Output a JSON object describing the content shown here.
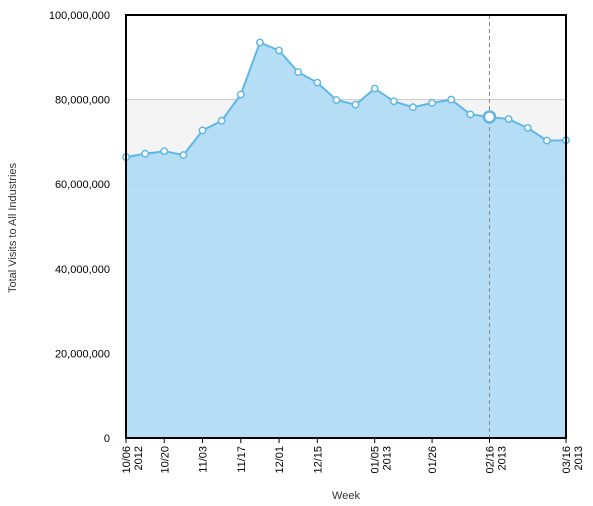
{
  "chart_data": {
    "type": "area",
    "title": "",
    "xlabel": "Week",
    "ylabel": "Total Visits to All Industries",
    "ylim": [
      0,
      100000000
    ],
    "y_ticks": [
      0,
      20000000,
      40000000,
      60000000,
      80000000,
      100000000
    ],
    "y_tick_labels": [
      "0",
      "20,000,000",
      "40,000,000",
      "60,000,000",
      "80,000,000",
      "100,000,000"
    ],
    "x_tick_labels": [
      {
        "index": 0,
        "lines": [
          "10/06",
          "2012"
        ]
      },
      {
        "index": 2,
        "lines": [
          "10/20"
        ]
      },
      {
        "index": 4,
        "lines": [
          "11/03"
        ]
      },
      {
        "index": 6,
        "lines": [
          "11/17"
        ]
      },
      {
        "index": 8,
        "lines": [
          "12/01"
        ]
      },
      {
        "index": 10,
        "lines": [
          "12/15"
        ]
      },
      {
        "index": 13,
        "lines": [
          "01/05",
          "2013"
        ]
      },
      {
        "index": 16,
        "lines": [
          "01/26"
        ]
      },
      {
        "index": 19,
        "lines": [
          "02/16",
          "2013"
        ]
      },
      {
        "index": 23,
        "lines": [
          "03/16",
          "2013"
        ]
      }
    ],
    "x_count": 24,
    "series": [
      {
        "values": [
          66400000,
          67200000,
          67800000,
          66900000,
          72700000,
          75000000,
          81200000,
          93500000,
          91600000,
          86500000,
          84000000,
          79900000,
          78800000,
          82600000,
          79600000,
          78200000,
          79200000,
          80000000,
          76500000,
          75900000,
          75400000,
          73300000,
          70300000,
          70400000
        ]
      }
    ],
    "highlighted_index": 19,
    "band": {
      "from": 60000000,
      "to": 80000000
    },
    "grid": true,
    "colors": {
      "area_fill": "#aedaf6",
      "line": "#5fb7e8",
      "band": "#f4f4f4",
      "grid": "#c8c8c8",
      "crosshair": "#888888",
      "frame": "#000000"
    }
  }
}
